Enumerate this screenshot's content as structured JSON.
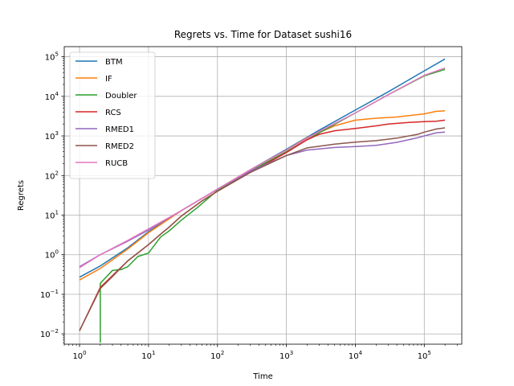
{
  "chart_data": {
    "type": "line",
    "title": "Regrets vs. Time for Dataset sushi16",
    "xlabel": "Time",
    "ylabel": "Regrets",
    "xscale": "log",
    "yscale": "log",
    "xlim": [
      0.6,
      350000
    ],
    "ylim": [
      0.0055,
      180000
    ],
    "grid": true,
    "legend_position": "top-left",
    "x_ticks": [
      {
        "value": 1,
        "base": "10",
        "exp": "0"
      },
      {
        "value": 10,
        "base": "10",
        "exp": "1"
      },
      {
        "value": 100,
        "base": "10",
        "exp": "2"
      },
      {
        "value": 1000,
        "base": "10",
        "exp": "3"
      },
      {
        "value": 10000,
        "base": "10",
        "exp": "4"
      },
      {
        "value": 100000,
        "base": "10",
        "exp": "5"
      }
    ],
    "y_ticks": [
      {
        "value": 0.01,
        "base": "10",
        "exp": "−2"
      },
      {
        "value": 0.1,
        "base": "10",
        "exp": "−1"
      },
      {
        "value": 1,
        "base": "10",
        "exp": "0"
      },
      {
        "value": 10,
        "base": "10",
        "exp": "1"
      },
      {
        "value": 100,
        "base": "10",
        "exp": "2"
      },
      {
        "value": 1000,
        "base": "10",
        "exp": "3"
      },
      {
        "value": 10000,
        "base": "10",
        "exp": "4"
      },
      {
        "value": 100000,
        "base": "10",
        "exp": "5"
      }
    ],
    "series": [
      {
        "name": "BTM",
        "color": "#1f77b4",
        "points": [
          [
            1,
            0.27
          ],
          [
            2,
            0.52
          ],
          [
            5,
            1.5
          ],
          [
            10,
            3.8
          ],
          [
            30,
            13
          ],
          [
            100,
            45
          ],
          [
            300,
            140
          ],
          [
            1000,
            460
          ],
          [
            3000,
            1400
          ],
          [
            10000,
            4500
          ],
          [
            30000,
            13000
          ],
          [
            100000,
            44000
          ],
          [
            200000,
            88000
          ]
        ]
      },
      {
        "name": "IF",
        "color": "#ff7f0e",
        "points": [
          [
            1,
            0.23
          ],
          [
            2,
            0.45
          ],
          [
            5,
            1.4
          ],
          [
            10,
            3.6
          ],
          [
            30,
            13
          ],
          [
            100,
            45
          ],
          [
            300,
            140
          ],
          [
            1000,
            440
          ],
          [
            2000,
            900
          ],
          [
            5000,
            1800
          ],
          [
            10000,
            2500
          ],
          [
            20000,
            2800
          ],
          [
            40000,
            3000
          ],
          [
            100000,
            3600
          ],
          [
            150000,
            4200
          ],
          [
            200000,
            4300
          ]
        ]
      },
      {
        "name": "Doubler",
        "color": "#2ca02c",
        "points": [
          [
            2,
            0.006
          ],
          [
            2,
            0.19
          ],
          [
            3,
            0.4
          ],
          [
            4,
            0.42
          ],
          [
            5,
            0.5
          ],
          [
            7,
            0.9
          ],
          [
            10,
            1.1
          ],
          [
            15,
            2.8
          ],
          [
            20,
            4
          ],
          [
            30,
            7.5
          ],
          [
            50,
            15
          ],
          [
            100,
            42
          ],
          [
            300,
            130
          ],
          [
            1000,
            400
          ],
          [
            3000,
            1200
          ],
          [
            10000,
            3800
          ],
          [
            30000,
            11000
          ],
          [
            100000,
            33000
          ],
          [
            200000,
            48000
          ]
        ]
      },
      {
        "name": "RCS",
        "color": "#d62728",
        "points": [
          [
            1,
            0.012
          ],
          [
            2,
            0.15
          ],
          [
            5,
            0.7
          ],
          [
            10,
            1.8
          ],
          [
            15,
            3.3
          ],
          [
            20,
            5
          ],
          [
            30,
            9.5
          ],
          [
            60,
            23
          ],
          [
            100,
            40
          ],
          [
            300,
            120
          ],
          [
            1000,
            380
          ],
          [
            2000,
            800
          ],
          [
            3000,
            1100
          ],
          [
            5000,
            1350
          ],
          [
            10000,
            1550
          ],
          [
            20000,
            1800
          ],
          [
            30000,
            2000
          ],
          [
            60000,
            2200
          ],
          [
            100000,
            2300
          ],
          [
            150000,
            2350
          ],
          [
            200000,
            2500
          ]
        ]
      },
      {
        "name": "RMED1",
        "color": "#9467bd",
        "points": [
          [
            1,
            0.5
          ],
          [
            2,
            1.0
          ],
          [
            5,
            2.2
          ],
          [
            10,
            4.2
          ],
          [
            30,
            13
          ],
          [
            100,
            45
          ],
          [
            300,
            130
          ],
          [
            1000,
            320
          ],
          [
            2000,
            440
          ],
          [
            5000,
            510
          ],
          [
            10000,
            540
          ],
          [
            20000,
            580
          ],
          [
            40000,
            690
          ],
          [
            80000,
            900
          ],
          [
            100000,
            1000
          ],
          [
            150000,
            1200
          ],
          [
            200000,
            1250
          ]
        ]
      },
      {
        "name": "RMED2",
        "color": "#8c564b",
        "points": [
          [
            1,
            0.012
          ],
          [
            2,
            0.14
          ],
          [
            3,
            0.28
          ],
          [
            5,
            0.7
          ],
          [
            10,
            1.8
          ],
          [
            15,
            3.3
          ],
          [
            20,
            5
          ],
          [
            30,
            9.5
          ],
          [
            60,
            23
          ],
          [
            100,
            40
          ],
          [
            300,
            120
          ],
          [
            1000,
            320
          ],
          [
            2000,
            500
          ],
          [
            5000,
            620
          ],
          [
            10000,
            700
          ],
          [
            20000,
            760
          ],
          [
            40000,
            880
          ],
          [
            80000,
            1100
          ],
          [
            100000,
            1250
          ],
          [
            150000,
            1500
          ],
          [
            200000,
            1600
          ]
        ]
      },
      {
        "name": "RUCB",
        "color": "#e377c2",
        "points": [
          [
            1,
            0.47
          ],
          [
            2,
            1.0
          ],
          [
            5,
            2.3
          ],
          [
            10,
            4.5
          ],
          [
            30,
            13
          ],
          [
            100,
            45
          ],
          [
            300,
            140
          ],
          [
            1000,
            440
          ],
          [
            3000,
            1300
          ],
          [
            10000,
            3800
          ],
          [
            30000,
            11000
          ],
          [
            100000,
            34000
          ],
          [
            200000,
            52000
          ]
        ]
      }
    ]
  }
}
